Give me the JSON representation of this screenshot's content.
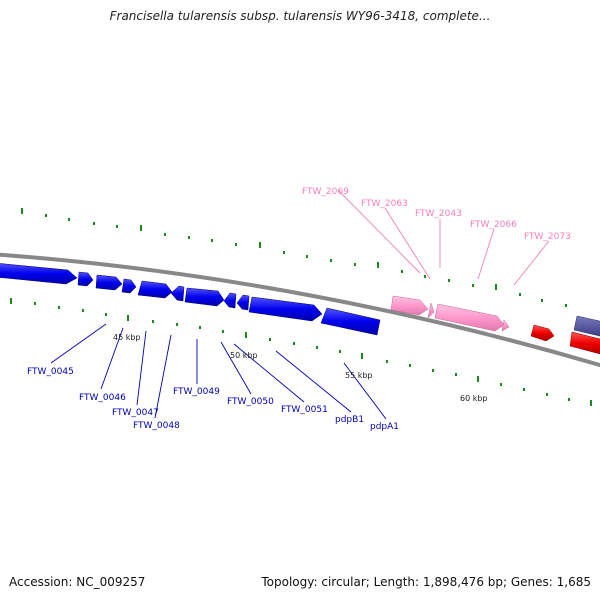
{
  "title": "Francisella tularensis subsp. tularensis WY96-3418, complete...",
  "footer": {
    "accession": "Accession: NC_009257",
    "summary": "Topology: circular; Length: 1,898,476 bp; Genes: 1,685"
  },
  "colors": {
    "backbone": "#888888",
    "forward_gene": "#0000ee",
    "reverse_gene": "#ff99cc",
    "rna_gene": "#ee0000",
    "other_gene": "#4a4a9a",
    "tick": "#1a8a1a",
    "label_blue": "#0000b0",
    "label_pink": "#f080b8"
  },
  "scale_labels": [
    "45 kbp",
    "50 kbp",
    "55 kbp",
    "60 kbp"
  ],
  "gene_labels_bottom": [
    "FTW_0045",
    "FTW_0046",
    "FTW_0047",
    "FTW_0048",
    "FTW_0049",
    "FTW_0050",
    "FTW_0051",
    "pdpB1",
    "pdpA1"
  ],
  "gene_labels_top": [
    "FTW_2069",
    "FTW_2063",
    "FTW_2043",
    "FTW_2066",
    "FTW_2073"
  ]
}
